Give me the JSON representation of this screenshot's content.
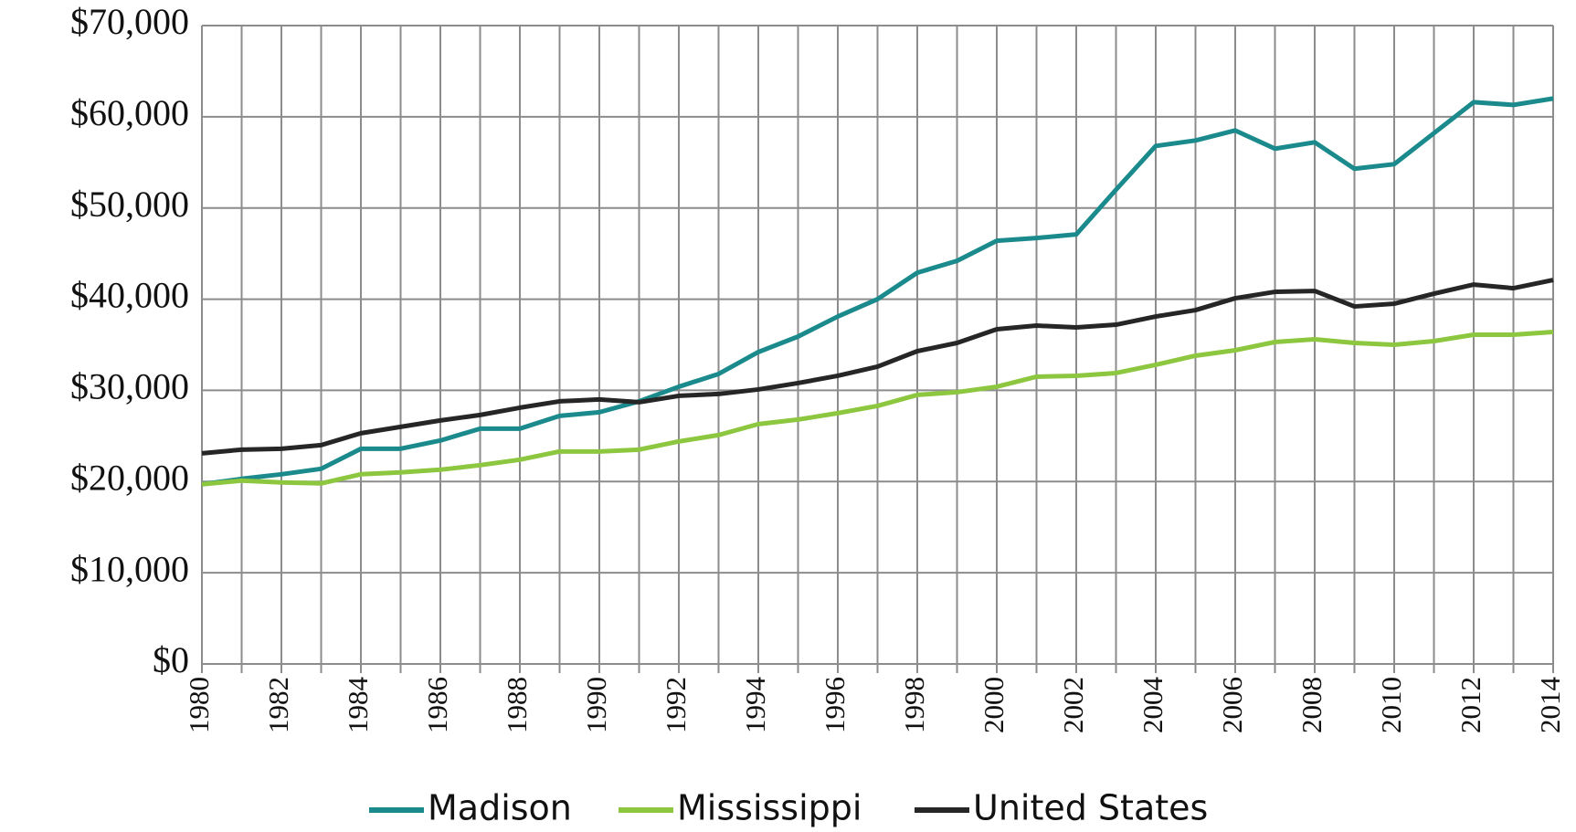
{
  "chart_data": {
    "type": "line",
    "categories": [
      "1980",
      null,
      "1982",
      null,
      "1984",
      null,
      "1986",
      null,
      "1988",
      null,
      "1990",
      null,
      "1992",
      null,
      "1994",
      null,
      "1996",
      null,
      "1998",
      null,
      "2000",
      null,
      "2002",
      null,
      "2004",
      null,
      "2006",
      null,
      "2008",
      null,
      "2010",
      null,
      "2012",
      null,
      "2014"
    ],
    "series": [
      {
        "name": "Madison",
        "color": "#1b8a8c",
        "values": [
          19700,
          20300,
          20800,
          21400,
          23600,
          23600,
          24500,
          25800,
          25800,
          27200,
          27600,
          28800,
          30400,
          31800,
          34200,
          35900,
          38100,
          40000,
          42900,
          44200,
          46400,
          46700,
          47100,
          52000,
          56800,
          57400,
          58500,
          56500,
          57200,
          54300,
          54800,
          58200,
          61600,
          61300,
          62000
        ]
      },
      {
        "name": "Mississippi",
        "color": "#8dc63f",
        "values": [
          19700,
          20100,
          19900,
          19800,
          20800,
          21000,
          21300,
          21800,
          22400,
          23300,
          23300,
          23500,
          24400,
          25100,
          26300,
          26800,
          27500,
          28300,
          29500,
          29800,
          30400,
          31500,
          31600,
          31900,
          32800,
          33800,
          34400,
          35300,
          35600,
          35200,
          35000,
          35400,
          36100,
          36100,
          36400
        ]
      },
      {
        "name": "United States",
        "color": "#262626",
        "values": [
          23100,
          23500,
          23600,
          24000,
          25300,
          26000,
          26700,
          27300,
          28100,
          28800,
          29000,
          28700,
          29400,
          29600,
          30100,
          30800,
          31600,
          32600,
          34300,
          35200,
          36700,
          37100,
          36900,
          37200,
          38100,
          38800,
          40100,
          40800,
          40900,
          39200,
          39500,
          40600,
          41600,
          41200,
          42100
        ]
      }
    ],
    "ylim": [
      0,
      70000
    ],
    "yticks": [
      {
        "value": 0,
        "label": "$0"
      },
      {
        "value": 10000,
        "label": "$10,000"
      },
      {
        "value": 20000,
        "label": "$20,000"
      },
      {
        "value": 30000,
        "label": "$30,000"
      },
      {
        "value": 40000,
        "label": "$40,000"
      },
      {
        "value": 50000,
        "label": "$50,000"
      },
      {
        "value": 60000,
        "label": "$60,000"
      },
      {
        "value": 70000,
        "label": "$70,000"
      }
    ],
    "grid": true,
    "legend": "bottom"
  }
}
